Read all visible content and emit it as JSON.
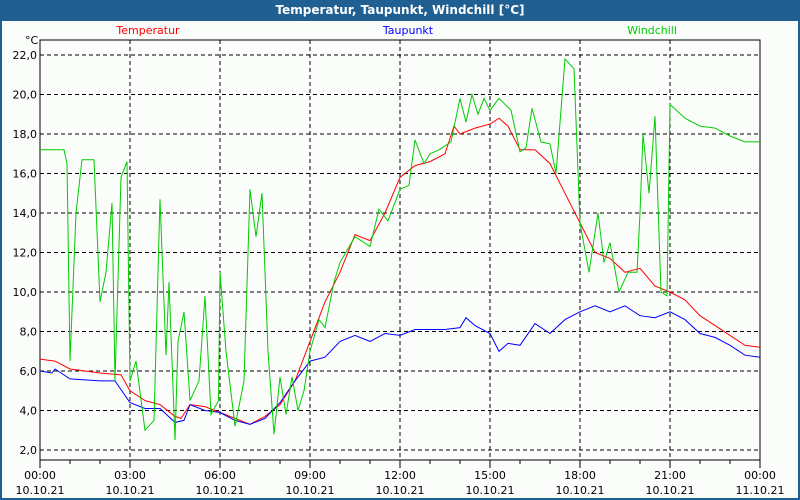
{
  "window": {
    "title": "Temperatur, Taupunkt, Windchill [°C]"
  },
  "chart_data": {
    "type": "line",
    "title": "Temperatur, Taupunkt, Windchill [°C]",
    "ylabel": "°C",
    "ylim": [
      2,
      22
    ],
    "xlim_hours": [
      0,
      24
    ],
    "grid": true,
    "y_ticks": [
      "2,0",
      "4,0",
      "6,0",
      "8,0",
      "10,0",
      "12,0",
      "14,0",
      "16,0",
      "18,0",
      "20,0",
      "22,0"
    ],
    "x_ticks": [
      {
        "time": "00:00",
        "date": "10.10.21"
      },
      {
        "time": "03:00",
        "date": "10.10.21"
      },
      {
        "time": "06:00",
        "date": "10.10.21"
      },
      {
        "time": "09:00",
        "date": "10.10.21"
      },
      {
        "time": "12:00",
        "date": "10.10.21"
      },
      {
        "time": "15:00",
        "date": "10.10.21"
      },
      {
        "time": "18:00",
        "date": "10.10.21"
      },
      {
        "time": "21:00",
        "date": "10.10.21"
      },
      {
        "time": "00:00",
        "date": "11.10.21"
      }
    ],
    "series": [
      {
        "name": "Temperatur",
        "color": "#ff0000",
        "points": [
          [
            0,
            6.6
          ],
          [
            0.5,
            6.5
          ],
          [
            1,
            6.1
          ],
          [
            2,
            5.9
          ],
          [
            2.7,
            5.8
          ],
          [
            3,
            5.0
          ],
          [
            3.5,
            4.5
          ],
          [
            4,
            4.3
          ],
          [
            4.5,
            3.7
          ],
          [
            4.7,
            3.6
          ],
          [
            5,
            4.3
          ],
          [
            5.5,
            4.2
          ],
          [
            6,
            3.9
          ],
          [
            6.5,
            3.6
          ],
          [
            7,
            3.3
          ],
          [
            7.5,
            3.7
          ],
          [
            8,
            4.3
          ],
          [
            8.5,
            5.5
          ],
          [
            9,
            7.5
          ],
          [
            9.5,
            9.5
          ],
          [
            10,
            11
          ],
          [
            10.5,
            12.9
          ],
          [
            11,
            12.6
          ],
          [
            11.5,
            14
          ],
          [
            12,
            15.8
          ],
          [
            12.5,
            16.4
          ],
          [
            13,
            16.6
          ],
          [
            13.5,
            17
          ],
          [
            13.8,
            18.4
          ],
          [
            14,
            18.0
          ],
          [
            14.5,
            18.3
          ],
          [
            15,
            18.5
          ],
          [
            15.3,
            18.8
          ],
          [
            15.6,
            18.4
          ],
          [
            16,
            17.2
          ],
          [
            16.5,
            17.2
          ],
          [
            17,
            16.5
          ],
          [
            17.5,
            15
          ],
          [
            18,
            13.5
          ],
          [
            18.5,
            12
          ],
          [
            19,
            11.7
          ],
          [
            19.5,
            11
          ],
          [
            20,
            11.2
          ],
          [
            20.5,
            10.3
          ],
          [
            21,
            10
          ],
          [
            21.5,
            9.6
          ],
          [
            22,
            8.8
          ],
          [
            22.5,
            8.3
          ],
          [
            23,
            7.8
          ],
          [
            23.5,
            7.3
          ],
          [
            24,
            7.2
          ]
        ]
      },
      {
        "name": "Taupunkt",
        "color": "#0000ff",
        "points": [
          [
            0,
            6.0
          ],
          [
            0.4,
            5.9
          ],
          [
            0.5,
            6.1
          ],
          [
            1,
            5.6
          ],
          [
            2,
            5.5
          ],
          [
            2.5,
            5.5
          ],
          [
            3,
            4.4
          ],
          [
            3.5,
            4.1
          ],
          [
            4,
            4.1
          ],
          [
            4.5,
            3.4
          ],
          [
            4.8,
            3.5
          ],
          [
            5,
            4.3
          ],
          [
            5.5,
            4.0
          ],
          [
            6,
            3.9
          ],
          [
            6.5,
            3.5
          ],
          [
            7,
            3.3
          ],
          [
            7.5,
            3.6
          ],
          [
            8,
            4.4
          ],
          [
            8.5,
            5.5
          ],
          [
            9,
            6.5
          ],
          [
            9.5,
            6.7
          ],
          [
            10,
            7.5
          ],
          [
            10.5,
            7.8
          ],
          [
            11,
            7.5
          ],
          [
            11.5,
            7.9
          ],
          [
            12,
            7.8
          ],
          [
            12.5,
            8.1
          ],
          [
            13,
            8.1
          ],
          [
            13.5,
            8.1
          ],
          [
            14,
            8.2
          ],
          [
            14.2,
            8.7
          ],
          [
            14.5,
            8.3
          ],
          [
            15,
            7.9
          ],
          [
            15.3,
            7.0
          ],
          [
            15.6,
            7.4
          ],
          [
            16,
            7.3
          ],
          [
            16.5,
            8.4
          ],
          [
            17,
            7.9
          ],
          [
            17.5,
            8.6
          ],
          [
            18,
            9.0
          ],
          [
            18.5,
            9.3
          ],
          [
            19,
            9.0
          ],
          [
            19.5,
            9.3
          ],
          [
            20,
            8.8
          ],
          [
            20.5,
            8.7
          ],
          [
            21,
            9.0
          ],
          [
            21.5,
            8.6
          ],
          [
            22,
            7.9
          ],
          [
            22.5,
            7.7
          ],
          [
            23,
            7.3
          ],
          [
            23.5,
            6.8
          ],
          [
            24,
            6.7
          ]
        ]
      },
      {
        "name": "Windchill",
        "color": "#00cc00",
        "points": [
          [
            0,
            17.2
          ],
          [
            0.8,
            17.2
          ],
          [
            0.9,
            16.5
          ],
          [
            1.0,
            6.5
          ],
          [
            1.2,
            14
          ],
          [
            1.4,
            16.7
          ],
          [
            1.8,
            16.7
          ],
          [
            2.0,
            9.5
          ],
          [
            2.2,
            11
          ],
          [
            2.4,
            14.5
          ],
          [
            2.5,
            5.5
          ],
          [
            2.7,
            15.8
          ],
          [
            2.9,
            16.6
          ],
          [
            3.0,
            5.5
          ],
          [
            3.2,
            6.5
          ],
          [
            3.5,
            3.0
          ],
          [
            3.8,
            3.5
          ],
          [
            4.0,
            14.7
          ],
          [
            4.2,
            6.8
          ],
          [
            4.3,
            10.5
          ],
          [
            4.5,
            2.5
          ],
          [
            4.6,
            7.5
          ],
          [
            4.8,
            9.0
          ],
          [
            5.0,
            4.5
          ],
          [
            5.3,
            5.5
          ],
          [
            5.5,
            9.8
          ],
          [
            5.7,
            3.8
          ],
          [
            5.95,
            4.5
          ],
          [
            6.0,
            11.0
          ],
          [
            6.2,
            7.0
          ],
          [
            6.5,
            3.2
          ],
          [
            6.8,
            5.5
          ],
          [
            7.0,
            15.2
          ],
          [
            7.2,
            12.8
          ],
          [
            7.4,
            15.0
          ],
          [
            7.6,
            7.0
          ],
          [
            7.8,
            2.8
          ],
          [
            8.0,
            5.7
          ],
          [
            8.2,
            3.8
          ],
          [
            8.4,
            5.7
          ],
          [
            8.6,
            4.0
          ],
          [
            8.8,
            5.0
          ],
          [
            9.0,
            7.0
          ],
          [
            9.3,
            8.6
          ],
          [
            9.5,
            8.2
          ],
          [
            9.8,
            10.5
          ],
          [
            10,
            11.5
          ],
          [
            10.5,
            12.8
          ],
          [
            11,
            12.3
          ],
          [
            11.3,
            14.2
          ],
          [
            11.6,
            13.6
          ],
          [
            12,
            15.2
          ],
          [
            12.3,
            15.4
          ],
          [
            12.5,
            17.7
          ],
          [
            12.8,
            16.5
          ],
          [
            13,
            17.0
          ],
          [
            13.3,
            17.2
          ],
          [
            13.7,
            17.6
          ],
          [
            14,
            19.8
          ],
          [
            14.2,
            18.6
          ],
          [
            14.4,
            20.0
          ],
          [
            14.6,
            19.0
          ],
          [
            14.8,
            19.8
          ],
          [
            15.0,
            19.2
          ],
          [
            15.3,
            19.8
          ],
          [
            15.7,
            19.2
          ],
          [
            16,
            17.1
          ],
          [
            16.2,
            17.3
          ],
          [
            16.4,
            19.3
          ],
          [
            16.7,
            17.6
          ],
          [
            17.0,
            17.5
          ],
          [
            17.2,
            16.0
          ],
          [
            17.5,
            21.8
          ],
          [
            17.8,
            21.3
          ],
          [
            18.0,
            13.5
          ],
          [
            18.3,
            11.0
          ],
          [
            18.6,
            14.0
          ],
          [
            18.8,
            11.5
          ],
          [
            19,
            12.5
          ],
          [
            19.3,
            10.0
          ],
          [
            19.6,
            11.0
          ],
          [
            19.9,
            11.0
          ],
          [
            20.0,
            14.0
          ],
          [
            20.1,
            18.0
          ],
          [
            20.3,
            15.0
          ],
          [
            20.5,
            18.9
          ],
          [
            20.7,
            10.0
          ],
          [
            20.9,
            9.8
          ],
          [
            21.0,
            19.5
          ],
          [
            21.5,
            18.8
          ],
          [
            22,
            18.4
          ],
          [
            22.5,
            18.3
          ],
          [
            23,
            17.9
          ],
          [
            23.5,
            17.6
          ],
          [
            24,
            17.6
          ]
        ]
      }
    ]
  }
}
